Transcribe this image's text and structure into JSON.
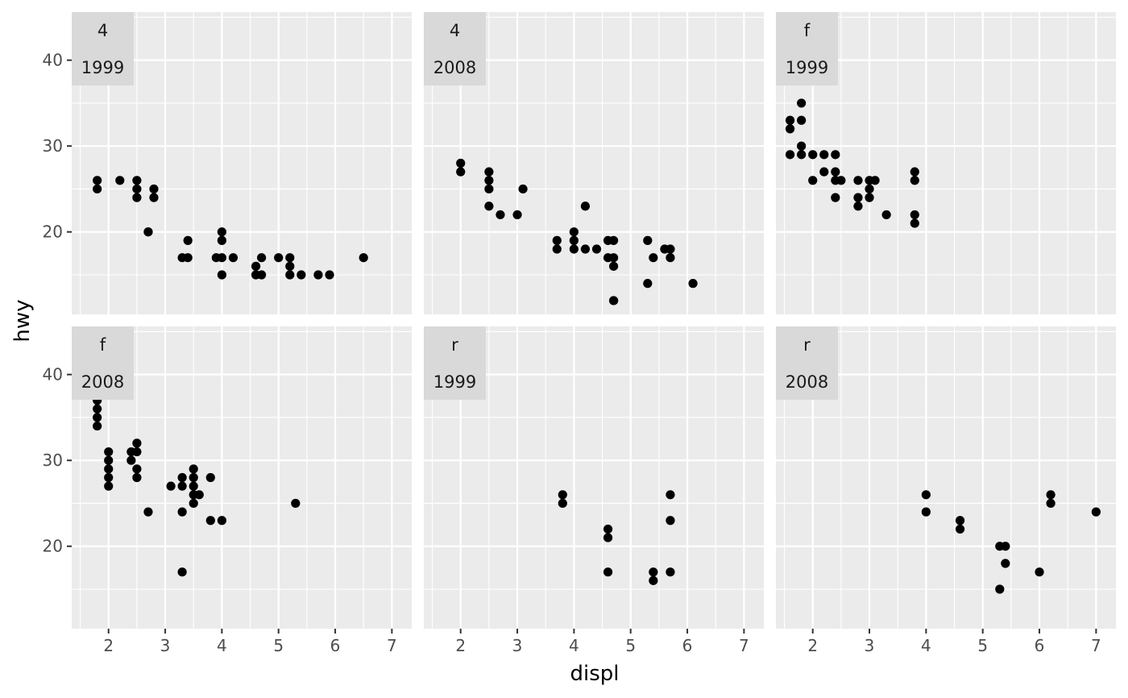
{
  "chart_data": {
    "type": "scatter",
    "xlabel": "displ",
    "ylabel": "hwy",
    "xlim": [
      1.35,
      7.35
    ],
    "ylim": [
      10.4,
      45.6
    ],
    "xticks": [
      2,
      3,
      4,
      5,
      6,
      7
    ],
    "yticks": [
      20,
      30,
      40
    ],
    "grid": true,
    "point_color": "#000000",
    "panel_background": "#ebebeb",
    "strip_background": "#d9d9d9",
    "panels": [
      {
        "drv": "4",
        "year": "1999",
        "points": [
          [
            1.8,
            26
          ],
          [
            1.8,
            25
          ],
          [
            2.2,
            26
          ],
          [
            2.5,
            26
          ],
          [
            2.5,
            25
          ],
          [
            2.5,
            24
          ],
          [
            2.8,
            25
          ],
          [
            2.8,
            24
          ],
          [
            2.7,
            20
          ],
          [
            2.7,
            20
          ],
          [
            3.3,
            17
          ],
          [
            3.4,
            19
          ],
          [
            3.4,
            17
          ],
          [
            3.9,
            17
          ],
          [
            4.0,
            20
          ],
          [
            4.0,
            19
          ],
          [
            4.0,
            17
          ],
          [
            4.0,
            15
          ],
          [
            4.2,
            17
          ],
          [
            4.6,
            16
          ],
          [
            4.6,
            15
          ],
          [
            4.7,
            17
          ],
          [
            4.7,
            15
          ],
          [
            5.0,
            17
          ],
          [
            5.2,
            17
          ],
          [
            5.2,
            16
          ],
          [
            5.2,
            15
          ],
          [
            5.4,
            15
          ],
          [
            5.7,
            15
          ],
          [
            5.9,
            15
          ],
          [
            6.5,
            17
          ]
        ]
      },
      {
        "drv": "4",
        "year": "2008",
        "points": [
          [
            2.0,
            28
          ],
          [
            2.0,
            27
          ],
          [
            2.5,
            27
          ],
          [
            2.5,
            26
          ],
          [
            2.5,
            25
          ],
          [
            2.5,
            23
          ],
          [
            2.7,
            22
          ],
          [
            3.0,
            22
          ],
          [
            3.1,
            25
          ],
          [
            3.7,
            19
          ],
          [
            3.7,
            18
          ],
          [
            4.0,
            20
          ],
          [
            4.0,
            19
          ],
          [
            4.0,
            18
          ],
          [
            4.2,
            23
          ],
          [
            4.2,
            18
          ],
          [
            4.4,
            18
          ],
          [
            4.6,
            19
          ],
          [
            4.6,
            17
          ],
          [
            4.7,
            19
          ],
          [
            4.7,
            17
          ],
          [
            4.7,
            16
          ],
          [
            4.7,
            12
          ],
          [
            4.7,
            12
          ],
          [
            5.3,
            19
          ],
          [
            5.3,
            14
          ],
          [
            5.4,
            17
          ],
          [
            5.6,
            18
          ],
          [
            5.7,
            18
          ],
          [
            5.7,
            17
          ],
          [
            6.1,
            14
          ]
        ]
      },
      {
        "drv": "f",
        "year": "1999",
        "points": [
          [
            1.6,
            33
          ],
          [
            1.6,
            32
          ],
          [
            1.6,
            29
          ],
          [
            1.8,
            35
          ],
          [
            1.8,
            33
          ],
          [
            1.8,
            30
          ],
          [
            1.8,
            29
          ],
          [
            2.0,
            29
          ],
          [
            2.0,
            26
          ],
          [
            2.2,
            29
          ],
          [
            2.2,
            27
          ],
          [
            2.4,
            29
          ],
          [
            2.4,
            27
          ],
          [
            2.4,
            26
          ],
          [
            2.4,
            24
          ],
          [
            2.5,
            26
          ],
          [
            2.8,
            26
          ],
          [
            2.8,
            24
          ],
          [
            2.8,
            23
          ],
          [
            3.0,
            26
          ],
          [
            3.0,
            25
          ],
          [
            3.0,
            24
          ],
          [
            3.1,
            26
          ],
          [
            3.3,
            22
          ],
          [
            3.8,
            27
          ],
          [
            3.8,
            26
          ],
          [
            3.8,
            22
          ],
          [
            3.8,
            21
          ]
        ]
      },
      {
        "drv": "f",
        "year": "2008",
        "points": [
          [
            1.8,
            37
          ],
          [
            1.8,
            36
          ],
          [
            1.8,
            35
          ],
          [
            1.8,
            34
          ],
          [
            2.0,
            31
          ],
          [
            2.0,
            30
          ],
          [
            2.0,
            29
          ],
          [
            2.0,
            28
          ],
          [
            2.0,
            27
          ],
          [
            2.4,
            31
          ],
          [
            2.4,
            30
          ],
          [
            2.5,
            32
          ],
          [
            2.5,
            31
          ],
          [
            2.5,
            29
          ],
          [
            2.5,
            28
          ],
          [
            2.7,
            24
          ],
          [
            3.1,
            27
          ],
          [
            3.3,
            28
          ],
          [
            3.3,
            27
          ],
          [
            3.3,
            24
          ],
          [
            3.3,
            17
          ],
          [
            3.5,
            29
          ],
          [
            3.5,
            28
          ],
          [
            3.5,
            27
          ],
          [
            3.5,
            26
          ],
          [
            3.5,
            25
          ],
          [
            3.6,
            26
          ],
          [
            3.8,
            28
          ],
          [
            3.8,
            23
          ],
          [
            4.0,
            23
          ],
          [
            5.3,
            25
          ]
        ]
      },
      {
        "drv": "r",
        "year": "1999",
        "points": [
          [
            3.8,
            26
          ],
          [
            3.8,
            25
          ],
          [
            4.6,
            22
          ],
          [
            4.6,
            21
          ],
          [
            4.6,
            17
          ],
          [
            5.4,
            17
          ],
          [
            5.4,
            16
          ],
          [
            5.7,
            26
          ],
          [
            5.7,
            23
          ],
          [
            5.7,
            17
          ]
        ]
      },
      {
        "drv": "r",
        "year": "2008",
        "points": [
          [
            4.0,
            26
          ],
          [
            4.0,
            24
          ],
          [
            4.6,
            23
          ],
          [
            4.6,
            22
          ],
          [
            5.3,
            20
          ],
          [
            5.3,
            15
          ],
          [
            5.4,
            20
          ],
          [
            5.4,
            18
          ],
          [
            6.0,
            17
          ],
          [
            6.2,
            26
          ],
          [
            6.2,
            25
          ],
          [
            7.0,
            24
          ]
        ]
      }
    ]
  }
}
